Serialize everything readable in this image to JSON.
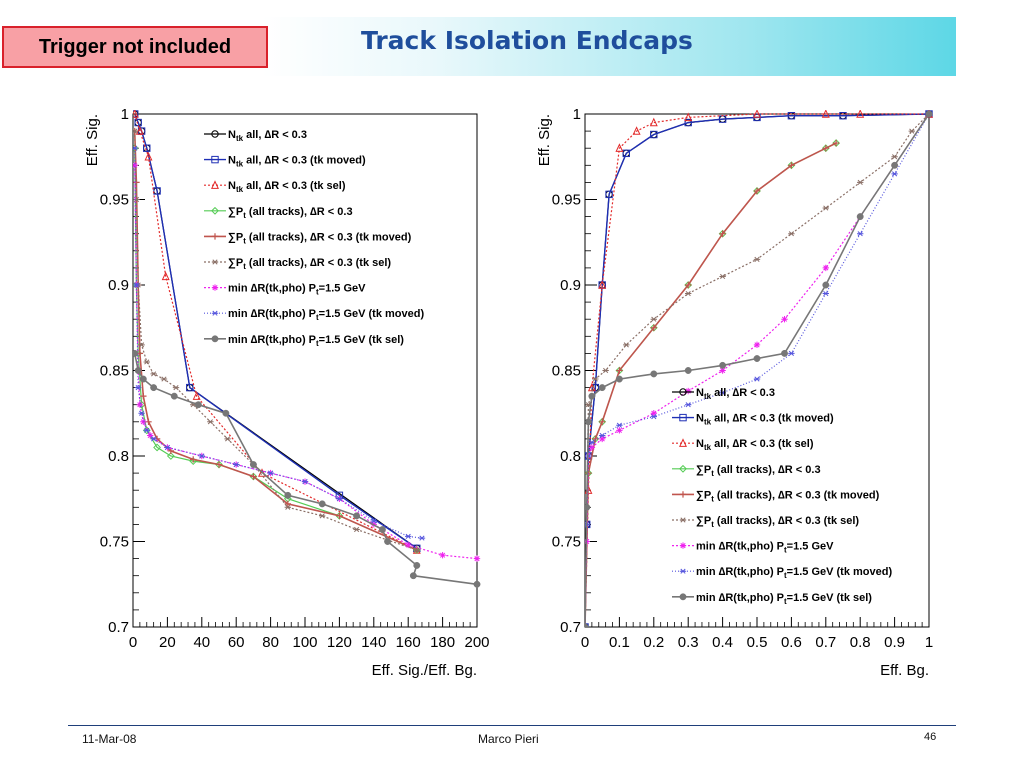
{
  "header": {
    "title": "Track Isolation Endcaps",
    "badge": "Trigger not included"
  },
  "footer": {
    "date": "11-Mar-08",
    "author": "Marco Pieri",
    "page": "46"
  },
  "legend": [
    {
      "id": "ntk",
      "pre": "N",
      "sub": "tk",
      "post": " all, ∆R < 0.3",
      "color": "#000000",
      "marker": "circle",
      "dash": "",
      "width": 1.2
    },
    {
      "id": "ntk_moved",
      "pre": "N",
      "sub": "tk",
      "post": " all, ∆R < 0.3 (tk moved)",
      "color": "#1e2fb5",
      "marker": "square",
      "dash": "",
      "width": 1.4
    },
    {
      "id": "ntk_sel",
      "pre": "N",
      "sub": "tk",
      "post": " all, ∆R < 0.3 (tk sel)",
      "color": "#e32b2b",
      "marker": "triangle",
      "dash": "2 2",
      "width": 1.2
    },
    {
      "id": "sumpt",
      "pre": "∑P",
      "sub": "t",
      "post": " (all tracks), ∆R < 0.3",
      "color": "#55cc55",
      "marker": "diamond",
      "dash": "",
      "width": 1.2
    },
    {
      "id": "sumpt_moved",
      "pre": "∑P",
      "sub": "t",
      "post": " (all tracks), ∆R < 0.3 (tk moved)",
      "color": "#c0554e",
      "marker": "cross",
      "dash": "",
      "width": 1.6
    },
    {
      "id": "sumpt_sel",
      "pre": "∑P",
      "sub": "t",
      "post": " (all tracks), ∆R < 0.3 (tk sel)",
      "color": "#8a6f66",
      "marker": "star",
      "dash": "2 2",
      "width": 1.2
    },
    {
      "id": "mindr",
      "pre": "min ∆R(tk,pho) P",
      "sub": "t",
      "post": "=1.5 GeV",
      "color": "#ee22ee",
      "marker": "asterisk",
      "dash": "2 2",
      "width": 1.2
    },
    {
      "id": "mindr_moved",
      "pre": "min ∆R(tk,pho) P",
      "sub": "t",
      "post": "=1.5 GeV (tk moved)",
      "color": "#5555dd",
      "marker": "star",
      "dash": "1 2",
      "width": 1.2
    },
    {
      "id": "mindr_sel",
      "pre": "min ∆R(tk,pho) P",
      "sub": "t",
      "post": "=1.5 GeV (tk sel)",
      "color": "#777777",
      "marker": "dot",
      "dash": "",
      "width": 1.6
    }
  ],
  "chart_data": [
    {
      "type": "line",
      "xlabel": "Eff. Sig./Eff. Bg.",
      "ylabel": "Eff. Sig.",
      "xlim": [
        0,
        200
      ],
      "ylim": [
        0.7,
        1.0
      ],
      "xticks": [
        0,
        20,
        40,
        60,
        80,
        100,
        120,
        140,
        160,
        180,
        200
      ],
      "yticks": [
        0.7,
        0.75,
        0.8,
        0.85,
        0.9,
        0.95,
        1
      ],
      "ytick_labels": [
        "0.7",
        "0.75",
        "0.8",
        "0.85",
        "0.9",
        "0.95",
        "1"
      ],
      "legend_position": "top-right",
      "series": [
        {
          "name": "ntk",
          "x": [
            1,
            3,
            5,
            8,
            14,
            33,
            165
          ],
          "y": [
            1.0,
            0.995,
            0.99,
            0.98,
            0.955,
            0.84,
            0.746
          ]
        },
        {
          "name": "ntk_moved",
          "x": [
            1,
            3,
            5,
            8,
            14,
            33,
            120,
            165
          ],
          "y": [
            1.0,
            0.995,
            0.99,
            0.98,
            0.955,
            0.84,
            0.777,
            0.746
          ]
        },
        {
          "name": "ntk_sel",
          "x": [
            1,
            4,
            9,
            19,
            37,
            75,
            165
          ],
          "y": [
            1.0,
            0.99,
            0.975,
            0.905,
            0.835,
            0.79,
            0.745
          ]
        },
        {
          "name": "sumpt",
          "x": [
            1,
            2,
            3,
            5,
            8,
            14,
            22,
            35,
            50,
            70,
            90,
            120,
            165
          ],
          "y": [
            0.98,
            0.9,
            0.86,
            0.83,
            0.815,
            0.805,
            0.8,
            0.797,
            0.795,
            0.788,
            0.775,
            0.765,
            0.745
          ]
        },
        {
          "name": "sumpt_moved",
          "x": [
            1,
            2,
            3,
            4,
            6,
            9,
            14,
            22,
            35,
            50,
            70,
            90,
            120,
            165
          ],
          "y": [
            0.99,
            0.96,
            0.9,
            0.86,
            0.835,
            0.82,
            0.81,
            0.803,
            0.798,
            0.795,
            0.788,
            0.772,
            0.765,
            0.745
          ]
        },
        {
          "name": "sumpt_sel",
          "x": [
            1,
            2,
            3,
            5,
            8,
            12,
            18,
            25,
            35,
            45,
            55,
            70,
            90,
            110,
            130,
            165
          ],
          "y": [
            0.99,
            0.95,
            0.9,
            0.865,
            0.855,
            0.848,
            0.845,
            0.84,
            0.83,
            0.82,
            0.81,
            0.795,
            0.77,
            0.765,
            0.757,
            0.745
          ]
        },
        {
          "name": "mindr",
          "x": [
            1,
            2,
            3,
            4,
            6,
            10,
            20,
            40,
            60,
            80,
            100,
            120,
            140,
            160,
            180,
            200
          ],
          "y": [
            0.97,
            0.9,
            0.85,
            0.83,
            0.82,
            0.812,
            0.805,
            0.8,
            0.795,
            0.79,
            0.785,
            0.775,
            0.76,
            0.748,
            0.742,
            0.74
          ]
        },
        {
          "name": "mindr_moved",
          "x": [
            1,
            2,
            3,
            5,
            8,
            12,
            20,
            40,
            60,
            80,
            100,
            120,
            140,
            160,
            168
          ],
          "y": [
            0.98,
            0.9,
            0.84,
            0.825,
            0.815,
            0.81,
            0.805,
            0.8,
            0.795,
            0.79,
            0.785,
            0.775,
            0.762,
            0.753,
            0.752
          ]
        },
        {
          "name": "mindr_sel",
          "x": [
            1,
            3,
            6,
            12,
            24,
            38,
            54,
            70,
            90,
            110,
            130,
            145,
            148,
            165,
            163,
            200
          ],
          "y": [
            0.86,
            0.85,
            0.845,
            0.84,
            0.835,
            0.83,
            0.825,
            0.795,
            0.777,
            0.772,
            0.765,
            0.757,
            0.75,
            0.736,
            0.73,
            0.725
          ]
        }
      ]
    },
    {
      "type": "line",
      "xlabel": "Eff. Bg.",
      "ylabel": "Eff. Sig.",
      "xlim": [
        0,
        1
      ],
      "ylim": [
        0.7,
        1.0
      ],
      "xticks": [
        0,
        0.1,
        0.2,
        0.3,
        0.4,
        0.5,
        0.6,
        0.7,
        0.8,
        0.9,
        1
      ],
      "xtick_labels": [
        "0",
        "0.1",
        "0.2",
        "0.3",
        "0.4",
        "0.5",
        "0.6",
        "0.7",
        "0.8",
        "0.9",
        "1"
      ],
      "yticks": [
        0.7,
        0.75,
        0.8,
        0.85,
        0.9,
        0.95,
        1
      ],
      "ytick_labels": [
        "0.7",
        "0.75",
        "0.8",
        "0.85",
        "0.9",
        "0.95",
        "1"
      ],
      "legend_position": "bottom-right",
      "series": [
        {
          "name": "ntk",
          "x": [
            0.0,
            0.005,
            0.01,
            0.03,
            0.05,
            0.07,
            0.12,
            0.2,
            0.3,
            0.4,
            0.5,
            0.6,
            0.75,
            1.0
          ],
          "y": [
            0.7,
            0.76,
            0.8,
            0.84,
            0.9,
            0.953,
            0.977,
            0.988,
            0.995,
            0.997,
            0.998,
            0.999,
            0.999,
            1.0
          ]
        },
        {
          "name": "ntk_moved",
          "x": [
            0.0,
            0.005,
            0.01,
            0.03,
            0.05,
            0.07,
            0.12,
            0.2,
            0.3,
            0.4,
            0.5,
            0.6,
            0.75,
            1.0
          ],
          "y": [
            0.7,
            0.76,
            0.8,
            0.84,
            0.9,
            0.953,
            0.977,
            0.988,
            0.995,
            0.997,
            0.998,
            0.999,
            0.999,
            1.0
          ]
        },
        {
          "name": "ntk_sel",
          "x": [
            0.0,
            0.01,
            0.02,
            0.05,
            0.1,
            0.15,
            0.2,
            0.3,
            0.5,
            0.7,
            0.8,
            1.0
          ],
          "y": [
            0.7,
            0.78,
            0.84,
            0.9,
            0.98,
            0.99,
            0.995,
            0.998,
            1.0,
            1.0,
            1.0,
            1.0
          ]
        },
        {
          "name": "sumpt",
          "x": [
            0.0,
            0.01,
            0.03,
            0.05,
            0.1,
            0.2,
            0.3,
            0.4,
            0.5,
            0.6,
            0.7,
            0.73
          ],
          "y": [
            0.7,
            0.79,
            0.81,
            0.82,
            0.85,
            0.875,
            0.9,
            0.93,
            0.955,
            0.97,
            0.98,
            0.983
          ]
        },
        {
          "name": "sumpt_moved",
          "x": [
            0.0,
            0.01,
            0.03,
            0.05,
            0.1,
            0.2,
            0.3,
            0.4,
            0.5,
            0.6,
            0.7,
            0.73
          ],
          "y": [
            0.7,
            0.79,
            0.81,
            0.82,
            0.85,
            0.875,
            0.9,
            0.93,
            0.955,
            0.97,
            0.98,
            0.983
          ]
        },
        {
          "name": "sumpt_sel",
          "x": [
            0.0,
            0.01,
            0.03,
            0.06,
            0.12,
            0.2,
            0.3,
            0.4,
            0.5,
            0.6,
            0.7,
            0.8,
            0.9,
            0.95,
            1.0
          ],
          "y": [
            0.7,
            0.83,
            0.845,
            0.85,
            0.865,
            0.88,
            0.895,
            0.905,
            0.915,
            0.93,
            0.945,
            0.96,
            0.975,
            0.99,
            1.0
          ]
        },
        {
          "name": "mindr",
          "x": [
            0.0,
            0.005,
            0.01,
            0.02,
            0.05,
            0.1,
            0.2,
            0.3,
            0.4,
            0.5,
            0.58,
            0.7,
            0.8,
            0.9,
            1.0
          ],
          "y": [
            0.7,
            0.75,
            0.8,
            0.805,
            0.81,
            0.815,
            0.825,
            0.838,
            0.85,
            0.865,
            0.88,
            0.91,
            0.94,
            0.97,
            1.0
          ]
        },
        {
          "name": "mindr_moved",
          "x": [
            0.0,
            0.005,
            0.01,
            0.02,
            0.05,
            0.1,
            0.2,
            0.3,
            0.4,
            0.5,
            0.6,
            0.7,
            0.8,
            0.9,
            1.0
          ],
          "y": [
            0.7,
            0.76,
            0.8,
            0.808,
            0.812,
            0.818,
            0.823,
            0.83,
            0.837,
            0.845,
            0.86,
            0.895,
            0.93,
            0.965,
            1.0
          ]
        },
        {
          "name": "mindr_sel",
          "x": [
            0.0,
            0.005,
            0.01,
            0.02,
            0.05,
            0.1,
            0.2,
            0.3,
            0.4,
            0.5,
            0.58,
            0.7,
            0.8,
            0.9,
            1.0
          ],
          "y": [
            0.7,
            0.77,
            0.82,
            0.835,
            0.84,
            0.845,
            0.848,
            0.85,
            0.853,
            0.857,
            0.86,
            0.9,
            0.94,
            0.97,
            1.0
          ]
        }
      ]
    }
  ]
}
